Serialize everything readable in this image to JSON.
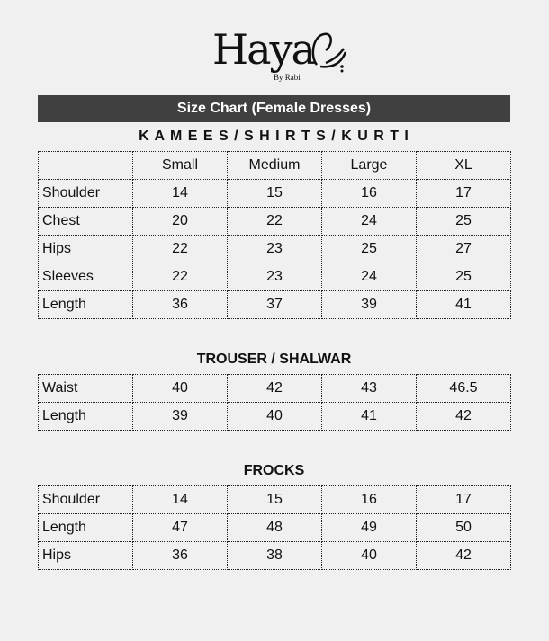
{
  "logo": {
    "name": "Haya",
    "tagline": "By Rabi"
  },
  "header": {
    "title": "Size Chart (Female Dresses)"
  },
  "sections": [
    {
      "title": "K A M E E S / S H I R T S / K U R T I",
      "columns": [
        "",
        "Small",
        "Medium",
        "Large",
        "XL"
      ],
      "rows": [
        [
          "Shoulder",
          "14",
          "15",
          "16",
          "17"
        ],
        [
          "Chest",
          "20",
          "22",
          "24",
          "25"
        ],
        [
          "Hips",
          "22",
          "23",
          "25",
          "27"
        ],
        [
          "Sleeves",
          "22",
          "23",
          "24",
          "25"
        ],
        [
          "Length",
          "36",
          "37",
          "39",
          "41"
        ]
      ]
    },
    {
      "title": "TROUSER / SHALWAR",
      "rows": [
        [
          "Waist",
          "40",
          "42",
          "43",
          "46.5"
        ],
        [
          "Length",
          "39",
          "40",
          "41",
          "42"
        ]
      ]
    },
    {
      "title": "FROCKS",
      "rows": [
        [
          "Shoulder",
          "14",
          "15",
          "16",
          "17"
        ],
        [
          "Length",
          "47",
          "48",
          "49",
          "50"
        ],
        [
          "Hips",
          "36",
          "38",
          "40",
          "42"
        ]
      ]
    }
  ]
}
